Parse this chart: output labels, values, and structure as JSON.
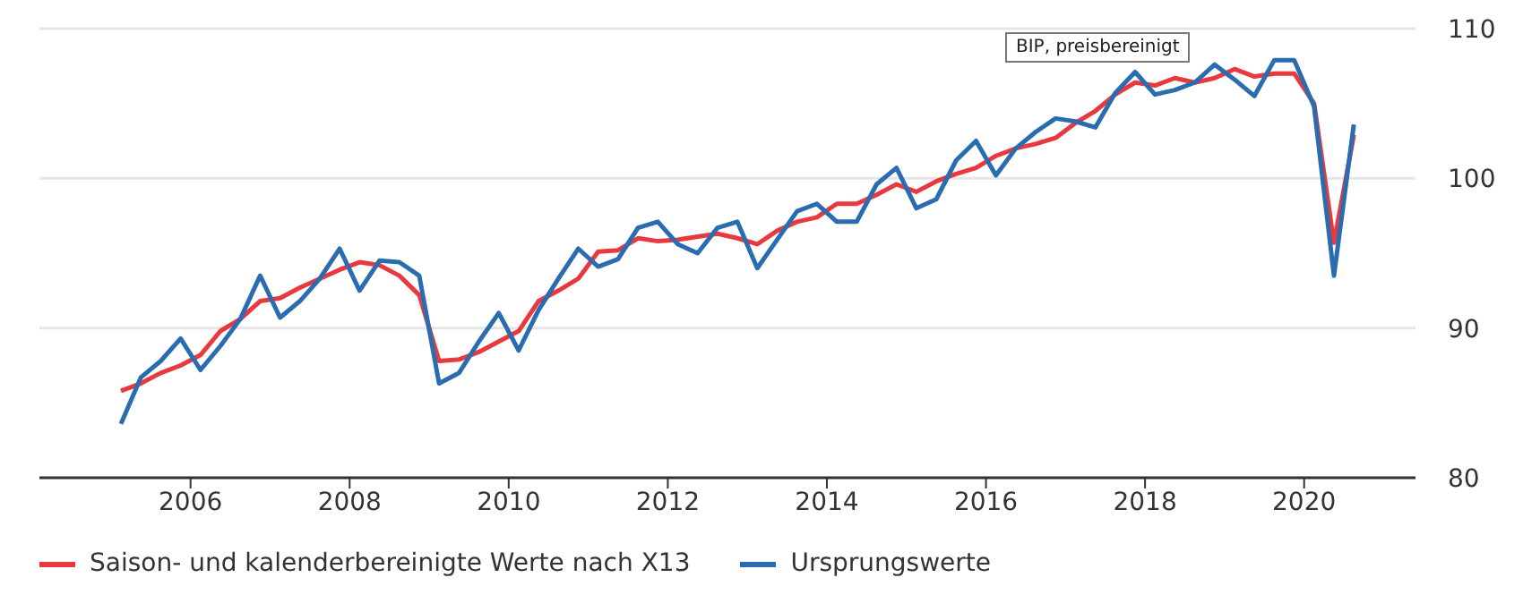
{
  "chart_data": {
    "type": "line",
    "annotations": [
      "BIP, preisbereinigt"
    ],
    "x": [
      2005.125,
      2005.375,
      2005.625,
      2005.875,
      2006.125,
      2006.375,
      2006.625,
      2006.875,
      2007.125,
      2007.375,
      2007.625,
      2007.875,
      2008.125,
      2008.375,
      2008.625,
      2008.875,
      2009.125,
      2009.375,
      2009.625,
      2009.875,
      2010.125,
      2010.375,
      2010.625,
      2010.875,
      2011.125,
      2011.375,
      2011.625,
      2011.875,
      2012.125,
      2012.375,
      2012.625,
      2012.875,
      2013.125,
      2013.375,
      2013.625,
      2013.875,
      2014.125,
      2014.375,
      2014.625,
      2014.875,
      2015.125,
      2015.375,
      2015.625,
      2015.875,
      2016.125,
      2016.375,
      2016.625,
      2016.875,
      2017.125,
      2017.375,
      2017.625,
      2017.875,
      2018.125,
      2018.375,
      2018.625,
      2018.875,
      2019.125,
      2019.375,
      2019.625,
      2019.875,
      2020.125,
      2020.375,
      2020.625
    ],
    "series": [
      {
        "name": "Saison- und kalenderbereinigte Werte nach X13",
        "color": "#e8393f",
        "values": [
          85.8,
          86.3,
          87.0,
          87.5,
          88.2,
          89.8,
          90.6,
          91.8,
          92.0,
          92.7,
          93.3,
          93.9,
          94.4,
          94.2,
          93.5,
          92.2,
          87.8,
          87.9,
          88.4,
          89.1,
          89.8,
          91.8,
          92.5,
          93.3,
          95.1,
          95.2,
          96.0,
          95.8,
          95.9,
          96.1,
          96.3,
          96.0,
          95.6,
          96.5,
          97.1,
          97.4,
          98.3,
          98.3,
          98.9,
          99.6,
          99.1,
          99.8,
          100.3,
          100.7,
          101.5,
          102.0,
          102.3,
          102.7,
          103.7,
          104.5,
          105.6,
          106.4,
          106.2,
          106.7,
          106.4,
          106.7,
          107.3,
          106.8,
          107.0,
          107.0,
          105.0,
          95.7,
          102.9
        ]
      },
      {
        "name": "Ursprungswerte",
        "color": "#2a6cb0",
        "values": [
          83.6,
          86.7,
          87.8,
          89.3,
          87.2,
          88.8,
          90.6,
          93.5,
          90.7,
          91.8,
          93.3,
          95.3,
          92.5,
          94.5,
          94.4,
          93.5,
          86.3,
          87.0,
          89.1,
          91.0,
          88.5,
          91.2,
          93.3,
          95.3,
          94.1,
          94.6,
          96.7,
          97.1,
          95.6,
          95.0,
          96.7,
          97.1,
          94.0,
          95.9,
          97.8,
          98.3,
          97.1,
          97.1,
          99.6,
          100.7,
          98.0,
          98.6,
          101.2,
          102.5,
          100.2,
          102.0,
          103.1,
          104.0,
          103.8,
          103.4,
          105.7,
          107.1,
          105.6,
          105.9,
          106.4,
          107.6,
          106.6,
          105.5,
          107.9,
          107.9,
          104.8,
          93.5,
          103.6
        ]
      }
    ],
    "xlim": [
      2004.1,
      2021.4
    ],
    "xticks": [
      2006,
      2008,
      2010,
      2012,
      2014,
      2016,
      2018,
      2020
    ],
    "ylim": [
      80,
      110
    ],
    "yticks": [
      80,
      90,
      100,
      110
    ],
    "grid": "y",
    "legend": "bottom",
    "marker": "none",
    "line_style": "solid"
  }
}
